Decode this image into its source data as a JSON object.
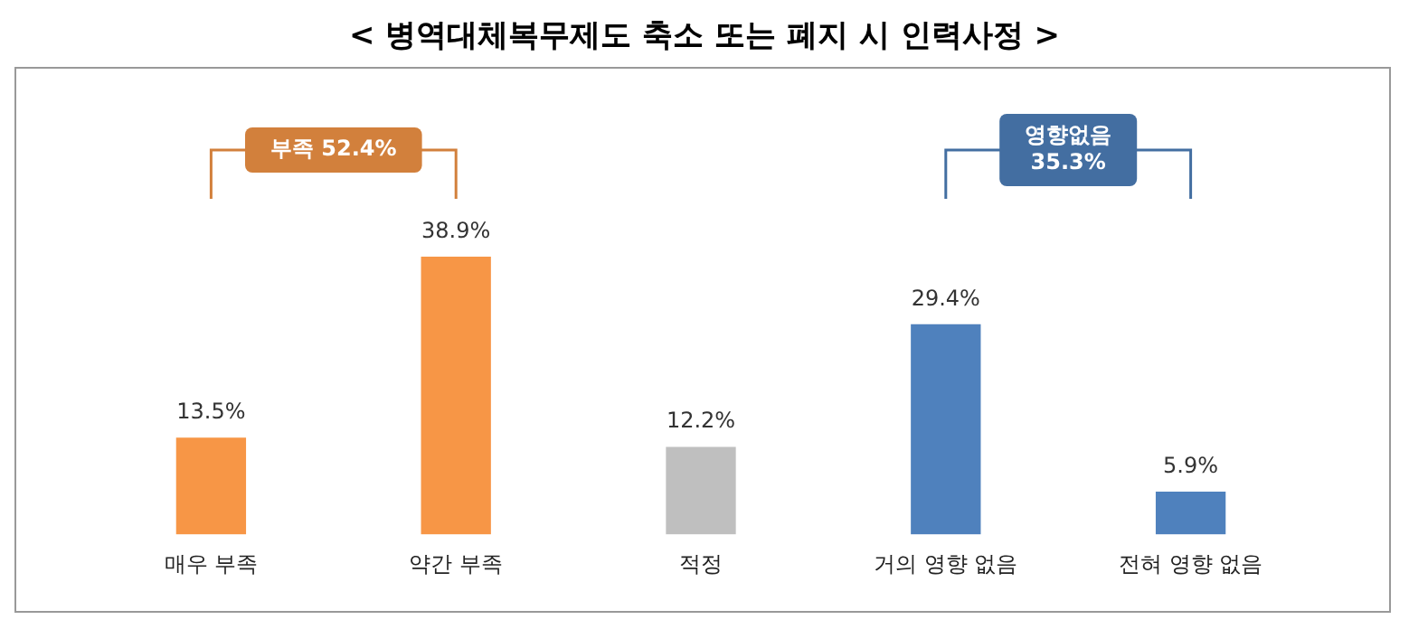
{
  "chart_data": {
    "type": "bar",
    "title": "< 병역대체복무제도 축소 또는 폐지 시 인력사정 >",
    "categories": [
      "매우 부족",
      "약간 부족",
      "적정",
      "거의 영향 없음",
      "전혀 영향 없음"
    ],
    "values": [
      13.5,
      38.9,
      12.2,
      29.4,
      5.9
    ],
    "colors": [
      "#f79646",
      "#f79646",
      "#bfbfbf",
      "#4f81bd",
      "#4f81bd"
    ],
    "value_labels": [
      "13.5%",
      "38.9%",
      "12.2%",
      "29.4%",
      "5.9%"
    ],
    "annotations": [
      "부족 52.4%",
      "영향없음\n35.3%"
    ],
    "grid": false,
    "legend": false
  }
}
